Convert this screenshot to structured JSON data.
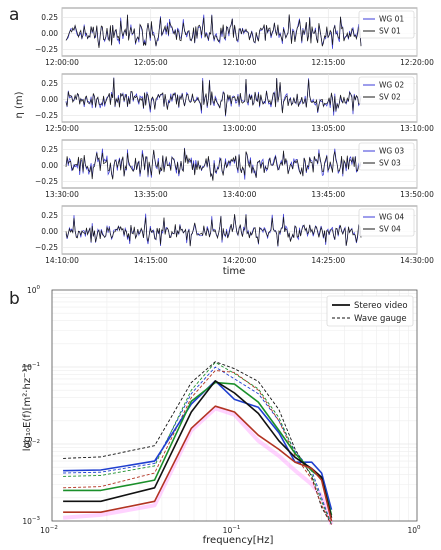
{
  "figure": {
    "panel_a_label": "a",
    "panel_b_label": "b"
  },
  "chart_data": [
    {
      "type": "line",
      "panel": "a",
      "ylabel": "η (m)",
      "xlabel": "time",
      "ylim": [
        -0.35,
        0.4
      ],
      "yticks": [
        -0.25,
        0.0,
        0.25
      ],
      "ytick_labels": [
        "−0.25",
        "0.00",
        "0.25"
      ],
      "grid": true,
      "legend_placement": "right",
      "colors": {
        "wave_gauge": "#3b3bd8",
        "stereo_video": "#1a1a1a"
      },
      "subplots": [
        {
          "xticks": [
            "12:00:00",
            "12:05:00",
            "12:10:00",
            "12:15:00",
            "12:20:00"
          ],
          "series": [
            {
              "name": "WG 01"
            },
            {
              "name": "SV 01"
            }
          ],
          "amplitude_m": 0.18,
          "peak_m": 0.3
        },
        {
          "xticks": [
            "12:50:00",
            "12:55:00",
            "13:00:00",
            "13:05:00",
            "13:10:00"
          ],
          "series": [
            {
              "name": "WG 02"
            },
            {
              "name": "SV 02"
            }
          ],
          "amplitude_m": 0.15,
          "peak_m": 0.35
        },
        {
          "xticks": [
            "13:30:00",
            "13:35:00",
            "13:40:00",
            "13:45:00",
            "13:50:00"
          ],
          "series": [
            {
              "name": "WG 03"
            },
            {
              "name": "SV 03"
            }
          ],
          "amplitude_m": 0.2,
          "peak_m": 0.28
        },
        {
          "xticks": [
            "14:10:00",
            "14:15:00",
            "14:20:00",
            "14:25:00",
            "14:30:00"
          ],
          "series": [
            {
              "name": "WG 04"
            },
            {
              "name": "SV 04"
            }
          ],
          "amplitude_m": 0.14,
          "peak_m": 0.3
        }
      ]
    },
    {
      "type": "line",
      "panel": "b",
      "xlabel": "frequency[Hz]",
      "ylabel": "log₁₀E(f)[m²·hz⁻¹]",
      "x_scale": "log",
      "y_scale": "log",
      "xlim": [
        0.01,
        1.0
      ],
      "ylim": [
        0.001,
        1.0
      ],
      "xtick_labels": [
        {
          "value": 0.01,
          "base": "10",
          "exp": "−2"
        },
        {
          "value": 0.1,
          "base": "10",
          "exp": "−1"
        },
        {
          "value": 1.0,
          "base": "10",
          "exp": "0"
        }
      ],
      "ytick_labels": [
        {
          "value": 0.001,
          "base": "10",
          "exp": "−3"
        },
        {
          "value": 0.01,
          "base": "10",
          "exp": "−2"
        },
        {
          "value": 0.1,
          "base": "10",
          "exp": "−1"
        },
        {
          "value": 1.0,
          "base": "10",
          "exp": "0"
        }
      ],
      "grid": true,
      "legend_placement": "top-right",
      "legend": [
        {
          "label": "Stereo video",
          "style": "solid"
        },
        {
          "label": "Wave gauge",
          "style": "dashed"
        }
      ],
      "x": [
        0.0115,
        0.0185,
        0.0365,
        0.058,
        0.0785,
        0.1,
        0.135,
        0.175,
        0.215,
        0.265,
        0.3,
        0.34
      ],
      "series": [
        {
          "color": "#1f3fd0",
          "style": "solid",
          "values": [
            0.0045,
            0.0046,
            0.006,
            0.033,
            0.066,
            0.038,
            0.03,
            0.014,
            0.0058,
            0.0058,
            0.0042,
            0.0014
          ]
        },
        {
          "color": "#1a8f2a",
          "style": "solid",
          "values": [
            0.0025,
            0.0025,
            0.0034,
            0.036,
            0.063,
            0.06,
            0.035,
            0.015,
            0.0075,
            0.0045,
            0.0036,
            0.0012
          ]
        },
        {
          "color": "#111111",
          "style": "solid",
          "values": [
            0.0018,
            0.0018,
            0.0027,
            0.026,
            0.066,
            0.046,
            0.025,
            0.011,
            0.0067,
            0.0048,
            0.0037,
            0.0011
          ]
        },
        {
          "color": "#b23322",
          "style": "solid",
          "values": [
            0.0013,
            0.0013,
            0.0018,
            0.016,
            0.031,
            0.026,
            0.013,
            0.0085,
            0.0058,
            0.0048,
            0.0034,
            0.001
          ]
        },
        {
          "color": "#ff80ff",
          "style": "solid",
          "values": [
            0.0011,
            0.0012,
            0.0016,
            0.015,
            0.029,
            0.024,
            0.011,
            0.007,
            0.0045,
            0.003,
            0.0021,
            0.0009
          ]
        },
        {
          "color": "#1f3fd0",
          "style": "dashed",
          "values": [
            0.0042,
            0.0043,
            0.0056,
            0.045,
            0.1,
            0.07,
            0.045,
            0.02,
            0.008,
            0.0045,
            0.002,
            0.0009
          ]
        },
        {
          "color": "#1a8f2a",
          "style": "dashed",
          "values": [
            0.0038,
            0.0039,
            0.0052,
            0.05,
            0.115,
            0.082,
            0.052,
            0.022,
            0.0075,
            0.004,
            0.0018,
            0.0009
          ]
        },
        {
          "color": "#111111",
          "style": "dashed",
          "values": [
            0.0065,
            0.0068,
            0.0095,
            0.063,
            0.117,
            0.095,
            0.065,
            0.028,
            0.0085,
            0.0038,
            0.0015,
            0.0008
          ]
        },
        {
          "color": "#b23322",
          "style": "dashed",
          "values": [
            0.0027,
            0.0028,
            0.0042,
            0.04,
            0.09,
            0.085,
            0.05,
            0.02,
            0.007,
            0.0035,
            0.0016,
            0.0008
          ]
        }
      ]
    }
  ]
}
